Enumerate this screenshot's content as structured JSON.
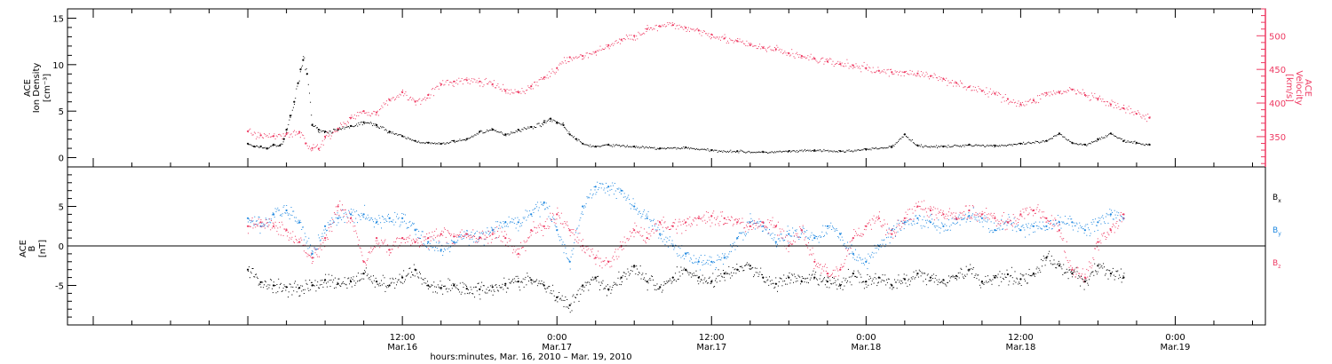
{
  "chart_data": [
    {
      "type": "scatter",
      "panel": "plasma",
      "ylabel_left": [
        "ACE",
        "Ion Density",
        "[cm⁻³]"
      ],
      "ylabel_right": [
        "ACE",
        "Velocity",
        "[km/s]"
      ],
      "ylim_left": [
        -1,
        16
      ],
      "ylim_right": [
        305,
        540
      ],
      "yticks_left": [
        "0",
        "5",
        "10",
        "15"
      ],
      "yticks_right": [
        "350",
        "400",
        "450",
        "500"
      ],
      "series": [
        {
          "axis": "left",
          "color": "#000000",
          "x": [
            0,
            0.5,
            1,
            1.5,
            2,
            2.5,
            2.8,
            3,
            3.3,
            3.6,
            3.9,
            4.1,
            4.3,
            4.6,
            5,
            5.5,
            6,
            7,
            8,
            9,
            10,
            11,
            12,
            13,
            14,
            15,
            16,
            17,
            18,
            19,
            20,
            21,
            22,
            23,
            23.5,
            24,
            24.5,
            25,
            25.5,
            26,
            27,
            28,
            30,
            32,
            34,
            36,
            38,
            40,
            42,
            44,
            46,
            48,
            50,
            51,
            52,
            54,
            56,
            58,
            60,
            62,
            63,
            64,
            65,
            66,
            67,
            68,
            69,
            70
          ],
          "y": [
            1.5,
            1.2,
            1.2,
            1.0,
            1.4,
            1.3,
            2.0,
            3.0,
            4.5,
            6.0,
            8.0,
            9.5,
            10.5,
            9.0,
            3.5,
            3.0,
            2.8,
            3.0,
            3.4,
            3.8,
            3.5,
            2.8,
            2.3,
            1.8,
            1.6,
            1.5,
            1.8,
            2.0,
            2.8,
            3.0,
            2.5,
            3.0,
            3.3,
            3.8,
            4.2,
            3.8,
            3.5,
            2.5,
            2.0,
            1.5,
            1.2,
            1.4,
            1.2,
            1.0,
            1.1,
            0.8,
            0.7,
            0.6,
            0.7,
            0.8,
            0.7,
            0.9,
            1.2,
            2.5,
            1.3,
            1.2,
            1.4,
            1.3,
            1.5,
            1.8,
            2.6,
            1.6,
            1.4,
            2.0,
            2.6,
            1.8,
            1.6,
            1.4
          ]
        },
        {
          "axis": "right",
          "color": "#ee3a62",
          "x": [
            0,
            1,
            2,
            3,
            4,
            4.5,
            5,
            5.5,
            6,
            7,
            8,
            9,
            10,
            11,
            12,
            13,
            14,
            15,
            16,
            17,
            18,
            19,
            20,
            21,
            22,
            23,
            24,
            25,
            26,
            27,
            28,
            29,
            30,
            31,
            32,
            33,
            34,
            35,
            36,
            37,
            38,
            39,
            40,
            41,
            42,
            43,
            44,
            45,
            46,
            47,
            48,
            49,
            50,
            51,
            52,
            53,
            54,
            55,
            56,
            57,
            58,
            59,
            60,
            61,
            62,
            63,
            64,
            65,
            66,
            67,
            68,
            69,
            70
          ],
          "y": [
            358,
            352,
            351,
            354,
            357,
            340,
            333,
            332,
            350,
            362,
            378,
            388,
            386,
            405,
            416,
            402,
            412,
            428,
            432,
            434,
            432,
            428,
            418,
            416,
            425,
            438,
            452,
            468,
            470,
            476,
            486,
            494,
            500,
            510,
            514,
            516,
            512,
            508,
            502,
            496,
            492,
            486,
            482,
            480,
            474,
            470,
            466,
            462,
            458,
            456,
            452,
            448,
            446,
            446,
            444,
            440,
            436,
            430,
            424,
            418,
            414,
            406,
            398,
            404,
            415,
            416,
            420,
            412,
            406,
            398,
            392,
            384,
            378
          ]
        }
      ]
    },
    {
      "type": "scatter",
      "panel": "magnetic_field",
      "ylabel": [
        "ACE",
        "B",
        "[nT]"
      ],
      "ylim": [
        -10,
        10
      ],
      "yticks": [
        "-5",
        "0",
        "5"
      ],
      "legend_placement": "right",
      "series": [
        {
          "name": "Bx",
          "legend_main": "B",
          "legend_sub": "x",
          "color": "#000000",
          "x": [
            0,
            1,
            2,
            3,
            4,
            5,
            6,
            7,
            8,
            9,
            10,
            11,
            12,
            13,
            14,
            15,
            16,
            17,
            18,
            19,
            20,
            21,
            22,
            23,
            24,
            25,
            26,
            27,
            28,
            29,
            30,
            31,
            32,
            33,
            34,
            35,
            36,
            37,
            38,
            39,
            40,
            41,
            42,
            43,
            44,
            45,
            46,
            47,
            48,
            49,
            50,
            51,
            52,
            53,
            54,
            55,
            56,
            57,
            58,
            59,
            60,
            61,
            62,
            63,
            64,
            65,
            66,
            67,
            68
          ],
          "y": [
            -3.0,
            -4.6,
            -5.0,
            -5.2,
            -5.3,
            -5.0,
            -4.3,
            -4.8,
            -4.5,
            -3.5,
            -4.5,
            -5.0,
            -4.0,
            -3.0,
            -5.0,
            -5.3,
            -5.0,
            -5.4,
            -5.5,
            -5.2,
            -4.8,
            -4.5,
            -4.3,
            -5.0,
            -6.5,
            -7.5,
            -5.0,
            -4.0,
            -5.5,
            -4.0,
            -2.5,
            -4.5,
            -5.2,
            -4.0,
            -3.0,
            -4.0,
            -4.5,
            -3.5,
            -3.0,
            -2.5,
            -4.0,
            -4.8,
            -4.0,
            -4.5,
            -4.0,
            -4.5,
            -5.0,
            -3.5,
            -4.5,
            -4.0,
            -5.0,
            -4.2,
            -3.5,
            -4.0,
            -4.3,
            -3.8,
            -3.0,
            -4.5,
            -4.0,
            -3.6,
            -4.2,
            -3.5,
            -1.5,
            -2.5,
            -3.5,
            -4.5,
            -2.5,
            -3.5,
            -4.0
          ]
        },
        {
          "name": "By",
          "legend_main": "B",
          "legend_sub": "y",
          "color": "#1f88e0",
          "x": [
            0,
            1,
            2,
            3,
            4,
            5,
            6,
            7,
            8,
            9,
            10,
            11,
            12,
            13,
            14,
            15,
            16,
            17,
            18,
            19,
            20,
            21,
            22,
            23,
            24,
            25,
            26,
            27,
            28,
            29,
            30,
            31,
            32,
            33,
            34,
            35,
            36,
            37,
            38,
            39,
            40,
            41,
            42,
            43,
            44,
            45,
            46,
            47,
            48,
            49,
            50,
            51,
            52,
            53,
            54,
            55,
            56,
            57,
            58,
            59,
            60,
            61,
            62,
            63,
            64,
            65,
            66,
            67,
            68
          ],
          "y": [
            3.5,
            2.5,
            4.0,
            4.5,
            3.0,
            -1.0,
            2.5,
            3.5,
            4.0,
            4.0,
            3.0,
            3.5,
            3.5,
            2.0,
            0.5,
            -0.5,
            0.5,
            1.5,
            1.0,
            2.0,
            3.0,
            3.0,
            4.0,
            5.5,
            2.0,
            -2.0,
            5.0,
            7.5,
            7.5,
            7.0,
            5.0,
            3.5,
            1.5,
            0.0,
            -1.0,
            -2.0,
            -2.0,
            -1.5,
            1.0,
            3.0,
            2.5,
            0.5,
            1.5,
            2.0,
            1.0,
            2.5,
            1.5,
            -1.0,
            -2.0,
            0.0,
            2.0,
            3.0,
            3.5,
            3.0,
            2.5,
            3.5,
            3.8,
            3.5,
            2.0,
            3.0,
            2.0,
            2.5,
            2.5,
            3.0,
            3.0,
            2.0,
            3.0,
            4.0,
            3.5
          ]
        },
        {
          "name": "Bz",
          "legend_main": "B",
          "legend_sub": "z",
          "color": "#ee3a62",
          "x": [
            0,
            1,
            2,
            3,
            4,
            5,
            6,
            7,
            8,
            9,
            10,
            11,
            12,
            13,
            14,
            15,
            16,
            17,
            18,
            19,
            20,
            21,
            22,
            23,
            24,
            25,
            26,
            27,
            28,
            29,
            30,
            31,
            32,
            33,
            34,
            35,
            36,
            37,
            38,
            39,
            40,
            41,
            42,
            43,
            44,
            45,
            46,
            47,
            48,
            49,
            50,
            51,
            52,
            53,
            54,
            55,
            56,
            57,
            58,
            59,
            60,
            61,
            62,
            63,
            64,
            65,
            66,
            67,
            68
          ],
          "y": [
            2.5,
            3.0,
            2.5,
            2.0,
            0.5,
            -1.5,
            1.0,
            5.0,
            3.5,
            -2.0,
            1.0,
            -0.5,
            1.0,
            0.5,
            1.0,
            1.5,
            1.2,
            1.5,
            1.0,
            1.5,
            1.0,
            -1.0,
            2.0,
            2.5,
            4.0,
            2.0,
            0.0,
            -1.5,
            -2.0,
            0.0,
            2.0,
            1.0,
            3.0,
            2.5,
            3.0,
            3.5,
            3.8,
            3.5,
            3.0,
            2.5,
            3.0,
            2.5,
            0.0,
            2.0,
            -2.0,
            -3.5,
            -3.0,
            1.0,
            2.5,
            3.5,
            1.5,
            3.5,
            5.0,
            4.5,
            4.0,
            3.5,
            4.5,
            4.0,
            3.5,
            3.0,
            4.0,
            4.5,
            3.5,
            2.0,
            -3.0,
            -4.0,
            0.5,
            2.0,
            4.0
          ]
        }
      ]
    }
  ],
  "x_axis": {
    "range_hours": [
      -14,
      79
    ],
    "ticks": [
      {
        "hour": 12,
        "time": "12:00",
        "date": "Mar.16"
      },
      {
        "hour": 24,
        "time": "0:00",
        "date": "Mar.17"
      },
      {
        "hour": 36,
        "time": "12:00",
        "date": "Mar.17"
      },
      {
        "hour": 48,
        "time": "0:00",
        "date": "Mar.18"
      },
      {
        "hour": 60,
        "time": "12:00",
        "date": "Mar.18"
      },
      {
        "hour": 72,
        "time": "0:00",
        "date": "Mar.19"
      }
    ],
    "label": "hours:minutes, Mar. 16, 2010 – Mar. 19, 2010"
  }
}
